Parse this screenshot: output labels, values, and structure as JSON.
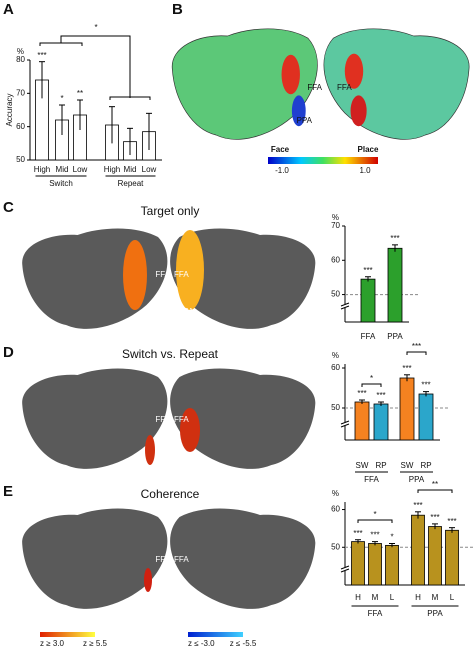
{
  "panels": {
    "a": "A",
    "b": "B",
    "c": "C",
    "d": "D",
    "e": "E"
  },
  "brain_titles": {
    "c": "Target only",
    "d": "Switch vs. Repeat",
    "e": "Coherence"
  },
  "roi": {
    "ffa": "FFA",
    "ppa": "PPA"
  },
  "colorbar": {
    "left": "Face",
    "right": "Place",
    "min": "-1.0",
    "max": "1.0"
  },
  "legend": [
    "z ≥ 3.0",
    "z ≥ 5.5",
    "z ≤ -3.0",
    "z ≤ -5.5"
  ],
  "chart_data": [
    {
      "type": "bar",
      "ylabel": "Accuracy",
      "y_unit": "%",
      "categories": [
        "High",
        "Mid",
        "Low",
        "High",
        "Mid",
        "Low"
      ],
      "groups": [
        "Switch",
        "Repeat"
      ],
      "values": [
        74,
        62,
        63.5,
        60.5,
        55.5,
        58.5
      ],
      "errors": [
        5.5,
        4.5,
        4.5,
        5.5,
        4,
        5.5
      ],
      "colors": [
        "#ffffff",
        "#ffffff",
        "#ffffff",
        "#ffffff",
        "#ffffff",
        "#ffffff"
      ],
      "bar_annotations": [
        "***",
        "*",
        "**",
        null,
        null,
        null
      ],
      "comparison_labels": [
        "*"
      ],
      "ylim": [
        50,
        80
      ],
      "yticks": [
        50,
        60,
        70,
        80
      ]
    },
    {
      "type": "bar",
      "y_unit": "%",
      "categories": [
        "FFA",
        "PPA"
      ],
      "values": [
        54.5,
        63.5
      ],
      "errors": [
        0.7,
        1
      ],
      "colors": [
        "#2ca02c",
        "#2ca02c"
      ],
      "bar_annotations": [
        "***",
        "***"
      ],
      "chance_line": 50,
      "ylim": [
        42,
        70
      ],
      "yticks": [
        50,
        60,
        70
      ]
    },
    {
      "type": "bar",
      "y_unit": "%",
      "categories": [
        "SW",
        "RP",
        "SW",
        "RP"
      ],
      "groups": [
        "FFA",
        "PPA"
      ],
      "values": [
        51.5,
        51,
        57.5,
        53.5
      ],
      "errors": [
        0.5,
        0.5,
        0.8,
        0.6
      ],
      "colors": [
        "#f58220",
        "#2ba6cb",
        "#f58220",
        "#2ba6cb"
      ],
      "bar_annotations": [
        "***",
        "***",
        "***",
        "***"
      ],
      "comparison_labels": [
        "*",
        "***"
      ],
      "chance_line": 50,
      "ylim": [
        42,
        61
      ],
      "yticks": [
        50,
        60
      ]
    },
    {
      "type": "bar",
      "y_unit": "%",
      "categories": [
        "H",
        "M",
        "L",
        "H",
        "M",
        "L"
      ],
      "groups": [
        "FFA",
        "PPA"
      ],
      "values": [
        51.5,
        51,
        50.5,
        58.5,
        55.5,
        54.5
      ],
      "errors": [
        0.5,
        0.5,
        0.5,
        0.9,
        0.7,
        0.7
      ],
      "colors": [
        "#b8921e",
        "#b8921e",
        "#b8921e",
        "#b8921e",
        "#b8921e",
        "#b8921e"
      ],
      "bar_annotations": [
        "***",
        "***",
        "*",
        "***",
        "***",
        "***"
      ],
      "comparison_labels": [
        "*",
        "**"
      ],
      "chance_line": 50,
      "ylim": [
        40,
        62
      ],
      "yticks": [
        50,
        60
      ]
    }
  ]
}
